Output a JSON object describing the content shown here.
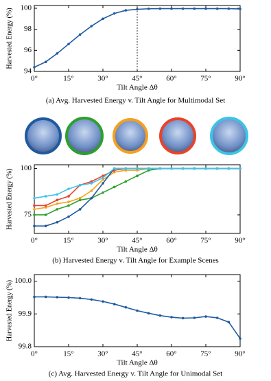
{
  "chart_data": [
    {
      "type": "line",
      "ylabel": "Harvested Energy (%)",
      "xlabel": "Tilt Angle Δθ",
      "caption": "(a) Avg. Harvested Energy v. Tilt Angle for Multimodal Set",
      "x": [
        0,
        5,
        10,
        15,
        20,
        25,
        30,
        35,
        40,
        45,
        50,
        55,
        60,
        65,
        70,
        75,
        80,
        85,
        90
      ],
      "series": [
        {
          "color": "#1f5aa0",
          "values": [
            94.4,
            94.9,
            95.7,
            96.6,
            97.5,
            98.3,
            99.0,
            99.5,
            99.8,
            99.9,
            99.95,
            99.96,
            99.96,
            99.96,
            99.96,
            99.96,
            99.96,
            99.96,
            99.93
          ]
        }
      ],
      "xlim": [
        0,
        90
      ],
      "ylim": [
        94,
        100.26
      ],
      "xticks": [
        {
          "value": 0,
          "label": "0°"
        },
        {
          "value": 15,
          "label": "15°"
        },
        {
          "value": 30,
          "label": "30°"
        },
        {
          "value": 45,
          "label": "45°"
        },
        {
          "value": 60,
          "label": "60°"
        },
        {
          "value": 75,
          "label": "75°"
        },
        {
          "value": 90,
          "label": "90°"
        }
      ],
      "yticks": [
        94,
        96,
        98,
        100
      ],
      "vline": 45
    },
    {
      "type": "line",
      "ylabel": "Harvested Energy (%)",
      "xlabel": "Tilt Angle Δθ",
      "caption": "(b) Harvested Energy v. Tilt Angle for Example Scenes",
      "x": [
        0,
        5,
        10,
        15,
        20,
        25,
        30,
        35,
        40,
        45,
        50,
        55,
        60,
        65,
        70,
        75,
        80,
        85,
        90
      ],
      "series": [
        {
          "color": "#2ca02c",
          "values": [
            75,
            75,
            78,
            80,
            83,
            84,
            87,
            90,
            93,
            96,
            99,
            100,
            100,
            100,
            100,
            100,
            100,
            100,
            100
          ]
        },
        {
          "color": "#f5a020",
          "values": [
            78,
            79,
            81,
            82,
            84,
            88,
            94,
            98,
            99,
            99,
            100,
            100,
            100,
            100,
            100,
            100,
            100,
            100,
            100
          ]
        },
        {
          "color": "#e8432a",
          "values": [
            80,
            80,
            83,
            85,
            91,
            93,
            96,
            99,
            100,
            100,
            100,
            100,
            100,
            100,
            100,
            100,
            100,
            100,
            100
          ]
        },
        {
          "color": "#1f5aa0",
          "values": [
            69,
            69,
            71,
            74,
            78,
            84,
            92,
            100,
            100,
            100,
            100,
            100,
            100,
            100,
            100,
            100,
            100,
            100,
            100
          ]
        },
        {
          "color": "#3cc4e8",
          "values": [
            84,
            85,
            86,
            89,
            91,
            92,
            95,
            100,
            100,
            100,
            100,
            100,
            100,
            100,
            100,
            100,
            100,
            100,
            100
          ]
        }
      ],
      "xlim": [
        0,
        90
      ],
      "ylim": [
        65,
        102
      ],
      "xticks": [
        {
          "value": 0,
          "label": "0°"
        },
        {
          "value": 15,
          "label": "15°"
        },
        {
          "value": 30,
          "label": "30°"
        },
        {
          "value": 45,
          "label": "45°"
        },
        {
          "value": 60,
          "label": "60°"
        },
        {
          "value": 75,
          "label": "75°"
        },
        {
          "value": 90,
          "label": "90°"
        }
      ],
      "yticks": [
        75,
        100
      ]
    },
    {
      "type": "line",
      "ylabel": "Harvested Energy (%)",
      "xlabel": "Tilt Angle Δθ",
      "caption": "(c) Avg. Harvested Energy v. Tilt Angle for Unimodal Set",
      "x": [
        0,
        5,
        10,
        15,
        20,
        25,
        30,
        35,
        40,
        45,
        50,
        55,
        60,
        65,
        70,
        75,
        80,
        85,
        90
      ],
      "series": [
        {
          "color": "#1f5aa0",
          "values": [
            99.952,
            99.952,
            99.951,
            99.95,
            99.948,
            99.944,
            99.938,
            99.93,
            99.92,
            99.91,
            99.902,
            99.895,
            99.89,
            99.887,
            99.888,
            99.892,
            99.888,
            99.875,
            99.825
          ]
        }
      ],
      "xlim": [
        0,
        90
      ],
      "ylim": [
        99.8,
        100.02
      ],
      "xticks": [
        {
          "value": 0,
          "label": "0°"
        },
        {
          "value": 15,
          "label": "15°"
        },
        {
          "value": 30,
          "label": "30°"
        },
        {
          "value": 45,
          "label": "45°"
        },
        {
          "value": 60,
          "label": "60°"
        },
        {
          "value": 75,
          "label": "75°"
        },
        {
          "value": 90,
          "label": "90°"
        }
      ],
      "yticks": [
        {
          "value": 99.8,
          "label": "99.8"
        },
        {
          "value": 99.9,
          "label": "99.9"
        },
        {
          "value": 100,
          "label": "100.0"
        }
      ]
    }
  ]
}
